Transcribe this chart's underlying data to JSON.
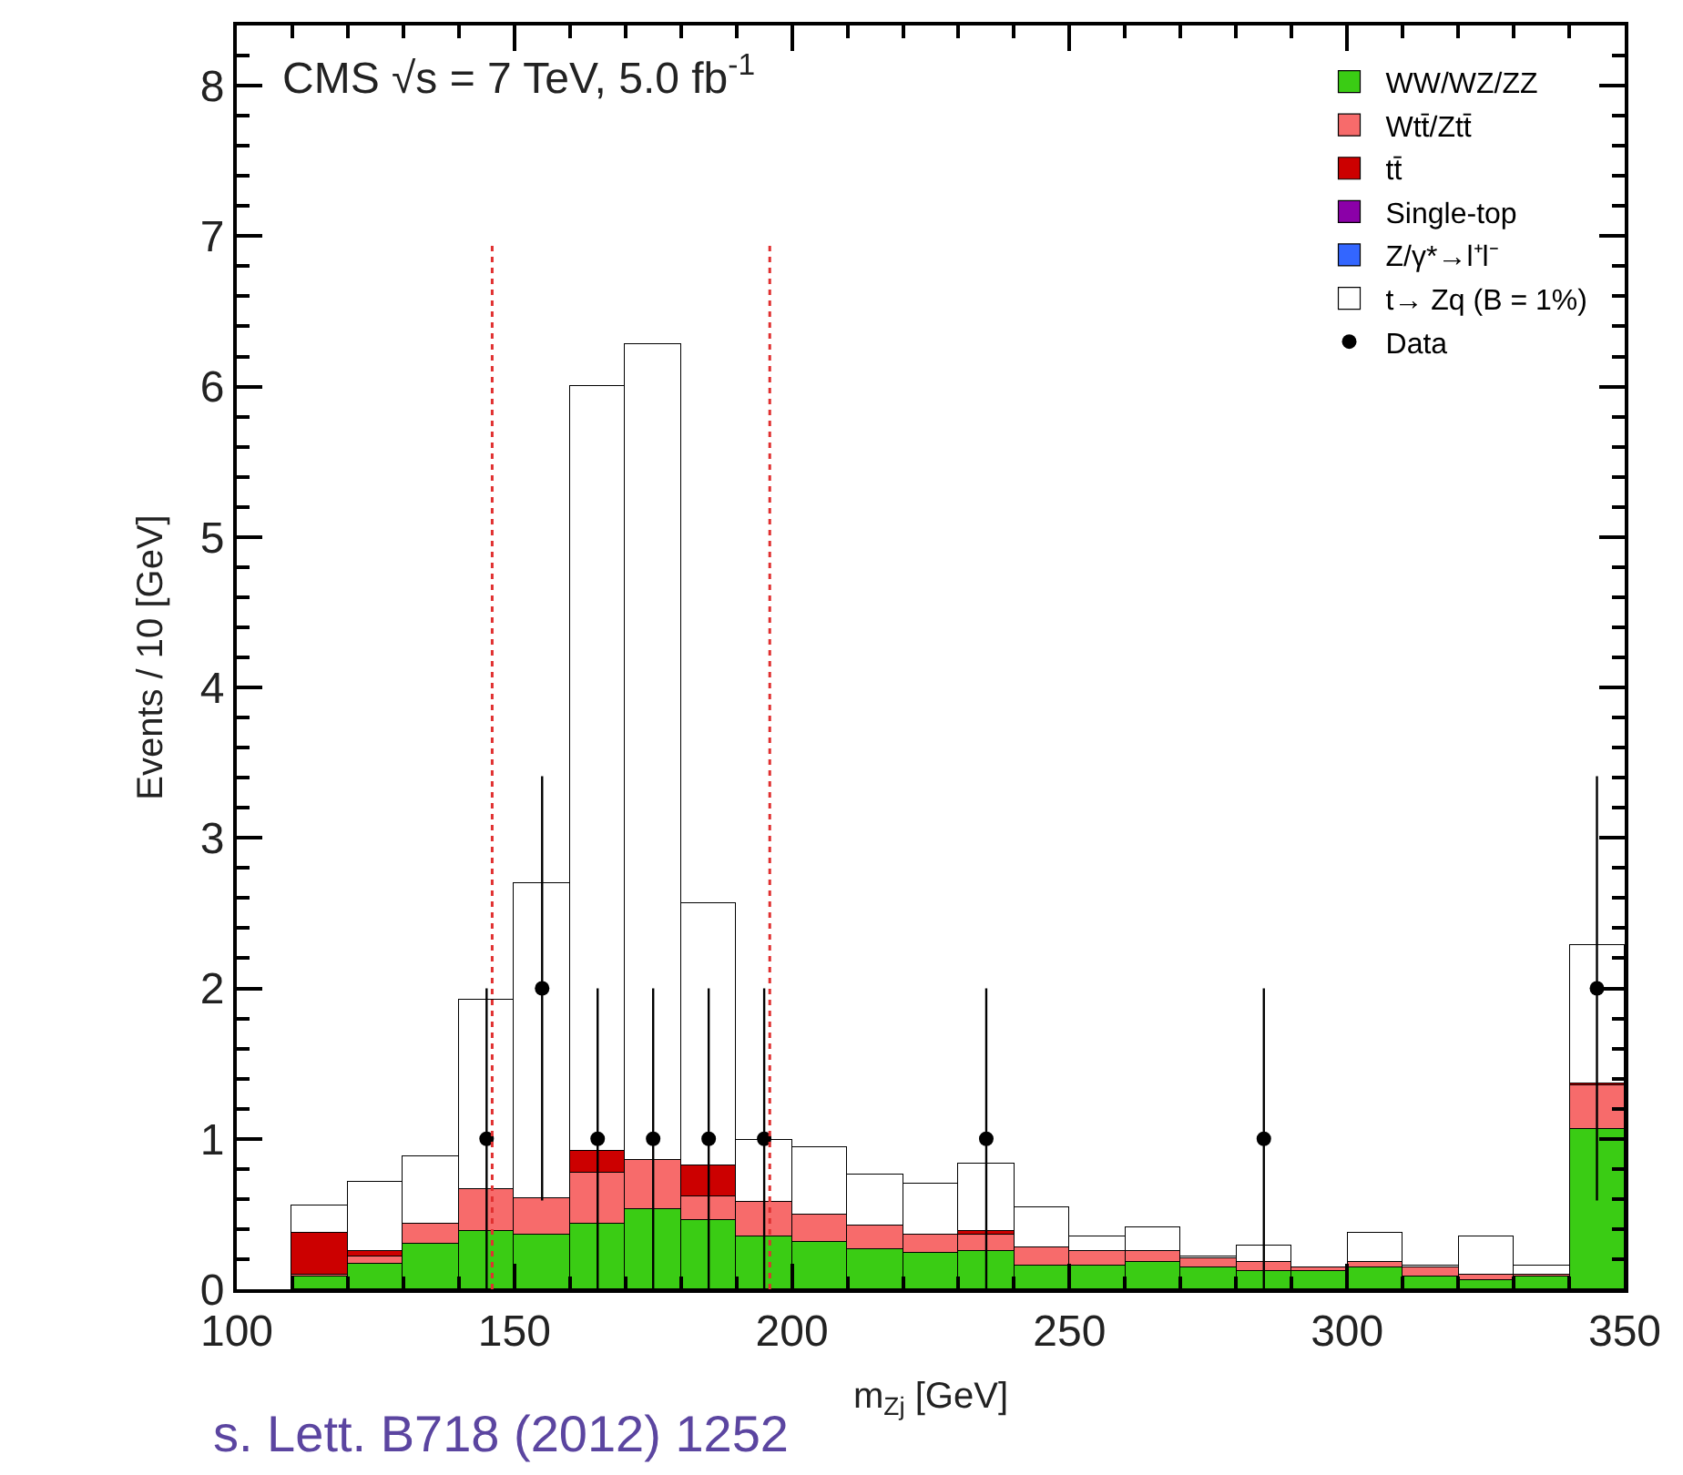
{
  "chart_data": {
    "type": "bar",
    "stacked": true,
    "annotations": [
      "CMS √s = 7 TeV, 5.0 fb$^{-1}$",
      "s. Lett. B718 (2012) 1252"
    ],
    "xlabel": "m$_{Zj}$ [GeV]",
    "ylabel": "Events / 10 [GeV]",
    "x": [
      105,
      115,
      125,
      135,
      145,
      155,
      165,
      175,
      185,
      195,
      205,
      215,
      225,
      235,
      245,
      255,
      265,
      275,
      285,
      295,
      305,
      315,
      325,
      335,
      345
    ],
    "xlim": [
      100,
      350
    ],
    "xticks": [
      100,
      150,
      200,
      250,
      300,
      350
    ],
    "ylim": [
      0,
      8.4
    ],
    "yticks": [
      0,
      1,
      2,
      3,
      4,
      5,
      6,
      7,
      8
    ],
    "grid": false,
    "legend": "top right",
    "series": [
      {
        "name": "WW/WZ/ZZ",
        "color": "#3acc14",
        "values": [
          0,
          0.08,
          0.17,
          0.3,
          0.39,
          0.36,
          0.44,
          0.53,
          0.46,
          0.35,
          0.31,
          0.27,
          0.24,
          0.26,
          0.16,
          0.16,
          0.18,
          0.14,
          0.12,
          0.12,
          0.14,
          0.08,
          0.06,
          0.08,
          1.06
        ]
      },
      {
        "name": "Wtt̄/Ztt̄",
        "color": "#f76b6b",
        "values": [
          0,
          0.02,
          0.05,
          0.14,
          0.27,
          0.25,
          0.34,
          0.33,
          0.16,
          0.23,
          0.19,
          0.15,
          0.12,
          0.1,
          0.12,
          0.1,
          0.08,
          0.06,
          0.06,
          0.03,
          0.04,
          0.06,
          0.04,
          0.02,
          0.29
        ]
      },
      {
        "name": "tt̄",
        "color": "#cc0000",
        "values": [
          0,
          0.28,
          0.04,
          0,
          0,
          0,
          0.14,
          0,
          0.2,
          0,
          0,
          0,
          0,
          0.03,
          0,
          0,
          0,
          0,
          0,
          0,
          0,
          0,
          0,
          0,
          0.02
        ]
      },
      {
        "name": "Single-top",
        "color": "#8b00a8",
        "values": [
          0,
          0,
          0,
          0,
          0,
          0,
          0,
          0,
          0,
          0,
          0,
          0,
          0,
          0,
          0,
          0,
          0,
          0,
          0,
          0,
          0,
          0,
          0,
          0,
          0
        ]
      },
      {
        "name": "Z/γ*→l⁺l⁻",
        "color": "#3366ff",
        "values": [
          0,
          0,
          0,
          0,
          0,
          0,
          0,
          0,
          0,
          0,
          0,
          0,
          0,
          0,
          0,
          0,
          0,
          0,
          0,
          0,
          0,
          0,
          0,
          0,
          0
        ]
      },
      {
        "name": "t→ Zq (B = 1%)",
        "color": "#ffffff",
        "values": [
          0,
          0.18,
          0.46,
          0.44,
          1.26,
          2.09,
          5.08,
          5.42,
          1.75,
          0.41,
          0.44,
          0.34,
          0.34,
          0.45,
          0.26,
          0.09,
          0.15,
          0.02,
          0.11,
          0,
          0.2,
          0.02,
          0.25,
          0.06,
          0.92
        ]
      },
      {
        "name": "Data",
        "type": "scatter",
        "marker": "circle",
        "color": "#000000",
        "x": [
          145,
          155,
          165,
          175,
          185,
          195,
          235,
          285,
          345
        ],
        "values": [
          1,
          2,
          1,
          1,
          1,
          1,
          1,
          1,
          2
        ],
        "errors": [
          [
            0,
            2
          ],
          [
            0.59,
            3.41
          ],
          [
            0,
            2
          ],
          [
            0,
            2
          ],
          [
            0,
            2
          ],
          [
            0,
            2
          ],
          [
            0,
            2
          ],
          [
            0,
            2
          ],
          [
            0.59,
            3.41
          ]
        ]
      }
    ],
    "ref_lines": [
      {
        "axis": "x",
        "value": 146,
        "color": "#e03030",
        "line_style": "dotted"
      },
      {
        "axis": "x",
        "value": 196,
        "color": "#e03030",
        "line_style": "dotted"
      }
    ]
  }
}
